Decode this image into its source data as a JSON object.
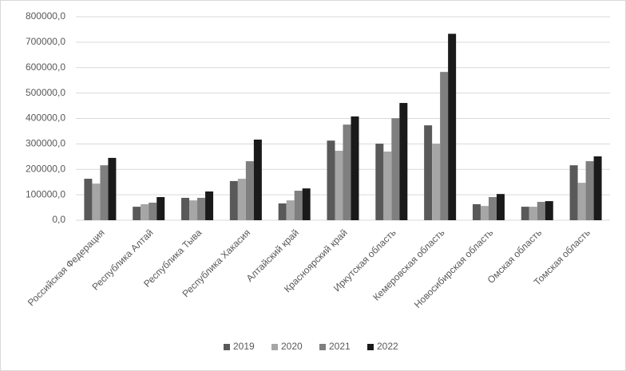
{
  "chart_data": {
    "type": "bar",
    "categories": [
      "Российская Федерация",
      "Республика Алтай",
      "Республика Тыва",
      "Республика Хакасия",
      "Алтайский край",
      "Красноярский край",
      "Иркутская область",
      "Кемеровская область",
      "Новосибирская область",
      "Омская область",
      "Томская область"
    ],
    "series": [
      {
        "name": "2019",
        "color": "#595959",
        "values": [
          163000,
          53000,
          88000,
          154000,
          66000,
          313000,
          301000,
          373000,
          63000,
          53000,
          216000
        ]
      },
      {
        "name": "2020",
        "color": "#a6a6a6",
        "values": [
          144000,
          63000,
          78000,
          163000,
          78000,
          273000,
          270000,
          301000,
          56000,
          53000,
          147000
        ]
      },
      {
        "name": "2021",
        "color": "#7f7f7f",
        "values": [
          216000,
          69000,
          88000,
          232000,
          116000,
          376000,
          401000,
          583000,
          91000,
          72000,
          232000
        ]
      },
      {
        "name": "2022",
        "color": "#1a1a1a",
        "values": [
          245000,
          91000,
          113000,
          317000,
          125000,
          408000,
          461000,
          733000,
          103000,
          75000,
          251000
        ]
      }
    ],
    "ylim": [
      0,
      800000
    ],
    "yticks": [
      {
        "value": 0,
        "label": "0,0"
      },
      {
        "value": 100000,
        "label": "100000,0"
      },
      {
        "value": 200000,
        "label": "200000,0"
      },
      {
        "value": 300000,
        "label": "300000,0"
      },
      {
        "value": 400000,
        "label": "400000,0"
      },
      {
        "value": 500000,
        "label": "500000,0"
      },
      {
        "value": 600000,
        "label": "600000,0"
      },
      {
        "value": 700000,
        "label": "700000,0"
      },
      {
        "value": 800000,
        "label": "800000,0"
      }
    ],
    "grid": true,
    "legend": "bottom"
  }
}
